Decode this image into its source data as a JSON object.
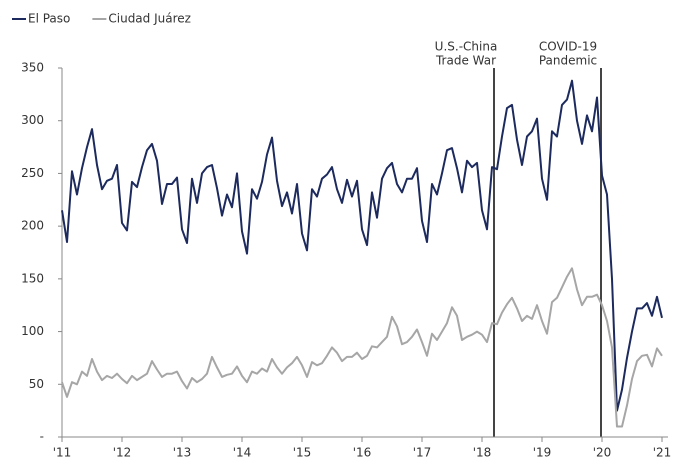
{
  "chart_data": {
    "type": "line",
    "categories": [
      "'11",
      null,
      null,
      null,
      null,
      null,
      null,
      null,
      null,
      null,
      null,
      null,
      "'12",
      null,
      null,
      null,
      null,
      null,
      null,
      null,
      null,
      null,
      null,
      null,
      "'13",
      null,
      null,
      null,
      null,
      null,
      null,
      null,
      null,
      null,
      null,
      null,
      "'14",
      null,
      null,
      null,
      null,
      null,
      null,
      null,
      null,
      null,
      null,
      null,
      "'15",
      null,
      null,
      null,
      null,
      null,
      null,
      null,
      null,
      null,
      null,
      null,
      "'16",
      null,
      null,
      null,
      null,
      null,
      null,
      null,
      null,
      null,
      null,
      null,
      "'17",
      null,
      null,
      null,
      null,
      null,
      null,
      null,
      null,
      null,
      null,
      null,
      "'18",
      null,
      null,
      null,
      null,
      null,
      null,
      null,
      null,
      null,
      null,
      null,
      "'19",
      null,
      null,
      null,
      null,
      null,
      null,
      null,
      null,
      null,
      null,
      null,
      "'20",
      null,
      null,
      null,
      null,
      null,
      null,
      null,
      null,
      null,
      null,
      null,
      "'21"
    ],
    "series": [
      {
        "name": "El Paso",
        "color": "#1c2a5e",
        "values": [
          215,
          185,
          252,
          230,
          255,
          275,
          292,
          258,
          235,
          243,
          245,
          258,
          203,
          196,
          242,
          237,
          256,
          272,
          278,
          262,
          221,
          240,
          240,
          246,
          197,
          184,
          245,
          222,
          250,
          256,
          258,
          236,
          210,
          230,
          218,
          250,
          195,
          174,
          235,
          226,
          242,
          268,
          284,
          243,
          219,
          232,
          212,
          240,
          193,
          177,
          235,
          228,
          245,
          249,
          256,
          235,
          222,
          244,
          228,
          243,
          197,
          182,
          232,
          208,
          245,
          255,
          260,
          240,
          232,
          245,
          245,
          255,
          205,
          185,
          240,
          230,
          250,
          272,
          274,
          255,
          232,
          262,
          256,
          260,
          215,
          197,
          256,
          254,
          285,
          312,
          315,
          282,
          258,
          285,
          290,
          302,
          245,
          225,
          290,
          285,
          315,
          320,
          338,
          300,
          278,
          305,
          290,
          322,
          248,
          230,
          150,
          25,
          45,
          75,
          100,
          122,
          122,
          127,
          115,
          133,
          113
        ]
      },
      {
        "name": "Ciudad Juárez",
        "color": "#a6a6a6",
        "values": [
          52,
          38,
          52,
          50,
          62,
          58,
          74,
          62,
          54,
          58,
          56,
          60,
          55,
          51,
          58,
          54,
          57,
          60,
          72,
          64,
          57,
          60,
          60,
          62,
          53,
          46,
          56,
          52,
          55,
          60,
          76,
          66,
          57,
          59,
          60,
          67,
          58,
          52,
          62,
          60,
          65,
          62,
          74,
          66,
          60,
          66,
          70,
          76,
          68,
          57,
          71,
          68,
          70,
          77,
          85,
          80,
          72,
          76,
          76,
          80,
          74,
          77,
          86,
          85,
          90,
          95,
          114,
          105,
          88,
          90,
          95,
          102,
          90,
          77,
          98,
          92,
          100,
          108,
          123,
          115,
          92,
          95,
          97,
          100,
          97,
          90,
          108,
          107,
          118,
          126,
          132,
          122,
          110,
          115,
          112,
          125,
          110,
          98,
          128,
          132,
          142,
          152,
          160,
          140,
          125,
          133,
          133,
          135,
          125,
          110,
          85,
          10,
          10,
          30,
          55,
          72,
          77,
          78,
          67,
          84,
          77
        ]
      }
    ],
    "annotations": [
      [
        "U.S.-China",
        "Trade War"
      ],
      [
        "COVID-19",
        "Pandemic"
      ]
    ],
    "ylim": [
      0,
      350
    ],
    "yticks": [
      {
        "value": 0,
        "label": "-"
      },
      50,
      100,
      150,
      200,
      250,
      300,
      350
    ]
  }
}
